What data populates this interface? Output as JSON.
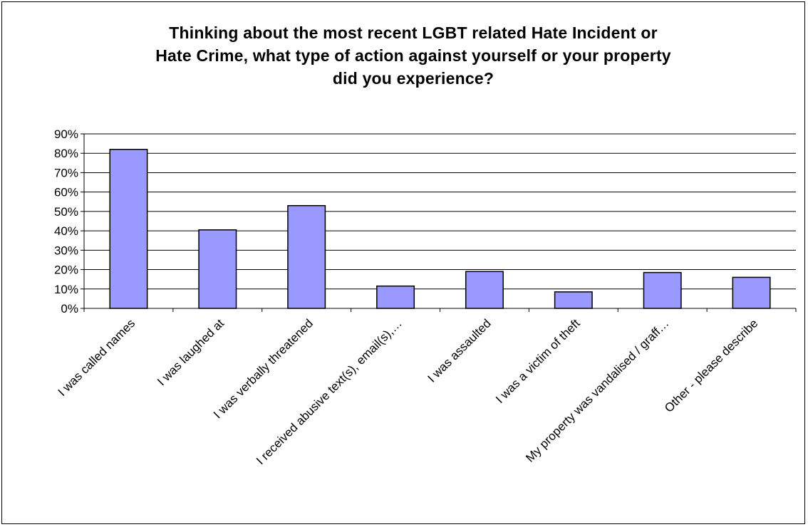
{
  "chart_data": {
    "type": "bar",
    "title": "Thinking about the most recent LGBT related Hate Incident or\nHate Crime, what type of action against yourself or your property\ndid you experience?",
    "categories": [
      "I was called names",
      "I was laughed at",
      "I was verbally threatened",
      "I received abusive text(s), email(s),…",
      "I was assaulted",
      "I was a victim of theft",
      "My property was vandalised / graff…",
      "Other - please describe"
    ],
    "values": [
      82,
      40.5,
      53,
      11.5,
      19,
      8.5,
      18.5,
      16
    ],
    "unit": "%",
    "ylim": [
      0,
      90
    ],
    "yticks": [
      0,
      10,
      20,
      30,
      40,
      50,
      60,
      70,
      80,
      90
    ],
    "ytick_labels": [
      "0%",
      "10%",
      "20%",
      "30%",
      "40%",
      "50%",
      "60%",
      "70%",
      "80%",
      "90%"
    ],
    "grid": true,
    "legend": "none",
    "colors": {
      "bar_fill": "#9999ff",
      "bar_stroke": "#000000",
      "grid": "#000000"
    }
  }
}
